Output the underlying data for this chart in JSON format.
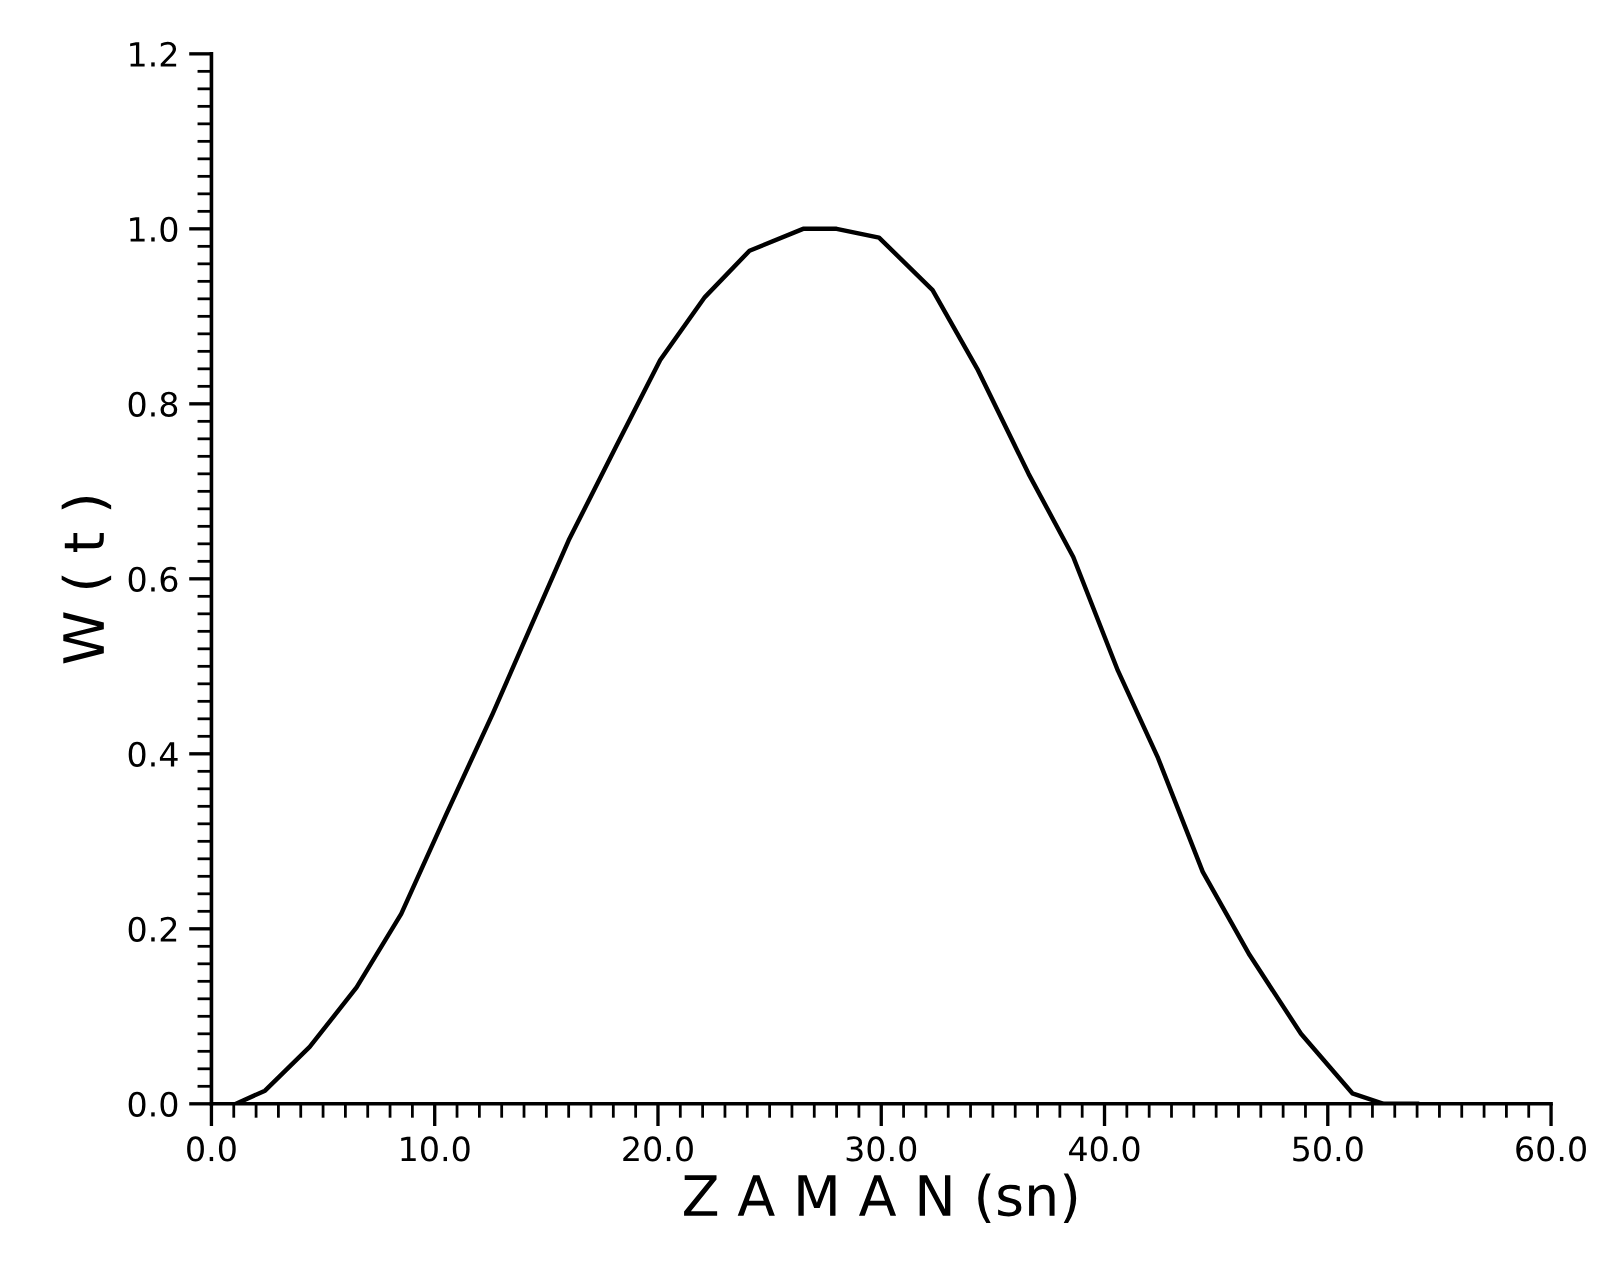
{
  "chart_data": {
    "type": "line",
    "xlabel": "Z A M A N (sn)",
    "ylabel": "W ( t )",
    "x": [
      1.1,
      2.4,
      4.4,
      6.5,
      8.5,
      10.5,
      12.6,
      14.3,
      16.0,
      18.1,
      20.1,
      22.1,
      24.1,
      26.5,
      28.0,
      29.9,
      32.3,
      34.3,
      36.6,
      38.6,
      40.6,
      42.4,
      44.4,
      46.5,
      48.8,
      51.1,
      52.5,
      54.0
    ],
    "series": [
      {
        "color": "#000000",
        "values": [
          0,
          0.015,
          0.065,
          0.133,
          0.217,
          0.33,
          0.446,
          0.545,
          0.644,
          0.75,
          0.85,
          0.922,
          0.975,
          1.0,
          1.0,
          0.99,
          0.93,
          0.84,
          0.72,
          0.625,
          0.495,
          0.395,
          0.265,
          0.17,
          0.08,
          0.012,
          0,
          0
        ]
      }
    ],
    "xlim": [
      0,
      60
    ],
    "ylim": [
      0,
      1.2
    ],
    "xticks": [
      {
        "value": 0,
        "label": "0.0"
      },
      {
        "value": 10,
        "label": "10.0"
      },
      {
        "value": 20,
        "label": "20.0"
      },
      {
        "value": 30,
        "label": "30.0"
      },
      {
        "value": 40,
        "label": "40.0"
      },
      {
        "value": 50,
        "label": "50.0"
      },
      {
        "value": 60,
        "label": "60.0"
      }
    ],
    "yticks": [
      {
        "value": 0,
        "label": "0.0"
      },
      {
        "value": 0.2,
        "label": "0.2"
      },
      {
        "value": 0.4,
        "label": "0.4"
      },
      {
        "value": 0.6,
        "label": "0.6"
      },
      {
        "value": 0.8,
        "label": "0.8"
      },
      {
        "value": 1.0,
        "label": "1.0"
      },
      {
        "value": 1.2,
        "label": "1.2"
      }
    ],
    "grid": false,
    "legend": false,
    "marker": "none",
    "line_style": "solid"
  }
}
